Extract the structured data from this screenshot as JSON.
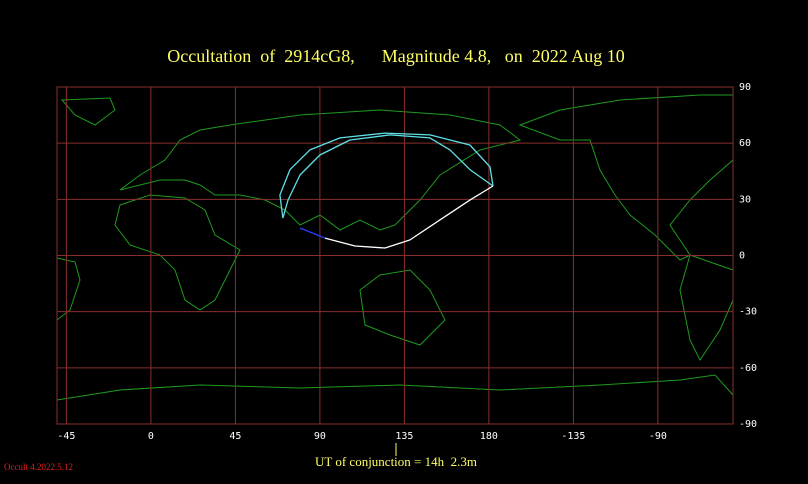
{
  "chart_data": {
    "type": "map",
    "title": "Occultation  of  2914cG8,      Magnitude 4.8,   on  2022 Aug 10",
    "footer": "UT of conjunction = 14h  2.3m",
    "version": "Occult 4.2022.5.12",
    "xlim": [
      -50,
      310
    ],
    "ylim": [
      -90,
      90
    ],
    "xticks": [
      -45,
      0,
      45,
      90,
      135,
      180,
      {
        "value": 225,
        "label": "-135"
      },
      {
        "value": 270,
        "label": "-90"
      }
    ],
    "yticks": [
      90,
      60,
      30,
      0,
      -30,
      -60,
      -90
    ],
    "grid": true,
    "grid_color": "#8a2f2f",
    "series": [
      {
        "color": "#5fe0e8",
        "x": [
          70.3,
          68.7,
          74.1,
          84.7,
          100.7,
          124.7,
          148.6,
          169.9,
          180.6,
          182.2
        ],
        "y": [
          20.0,
          32.3,
          45.9,
          56.4,
          62.8,
          65.4,
          64.4,
          59.0,
          47.3,
          37.1
        ]
      },
      {
        "color": "#5fe0e8",
        "x": [
          182.2,
          169.9,
          159.3,
          148.6,
          127.3,
          106.0,
          90.0,
          79.4,
          73.0,
          70.3
        ],
        "y": [
          37.1,
          45.9,
          56.4,
          62.8,
          64.4,
          61.7,
          53.7,
          43.0,
          29.6,
          20.0
        ]
      },
      {
        "color": "#ffffff",
        "x": [
          182.2,
          169.9,
          153.9,
          137.9,
          124.7,
          108.7,
          92.7
        ],
        "y": [
          37.1,
          29.6,
          19.0,
          8.3,
          4.0,
          5.1,
          9.3
        ]
      },
      {
        "color": "#2a3cff",
        "x": [
          79.4,
          92.7
        ],
        "y": [
          14.7,
          9.3
        ]
      }
    ]
  }
}
